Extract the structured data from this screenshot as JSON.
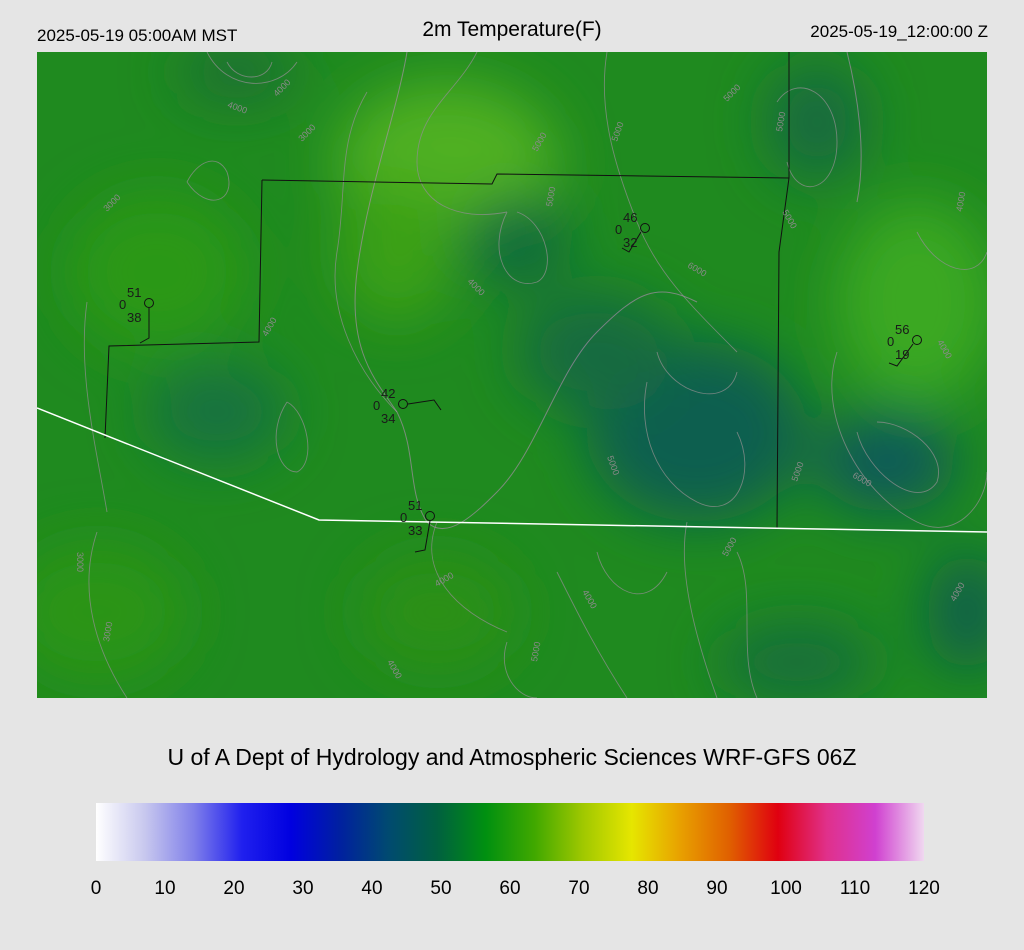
{
  "header": {
    "local_time": "2025-05-19 05:00AM MST",
    "title": "2m Temperature(F)",
    "valid_time": "2025-05-19_12:00:00 Z"
  },
  "credit": "U of A Dept of Hydrology and Atmospheric Sciences WRF-GFS 06Z",
  "colorbar": {
    "ticks": [
      "0",
      "10",
      "20",
      "30",
      "40",
      "50",
      "60",
      "70",
      "80",
      "90",
      "100",
      "110",
      "120"
    ],
    "range": [
      0,
      120
    ],
    "stops": [
      "#ffffff",
      "#c8c8ee",
      "#8080ea",
      "#2020ee",
      "#0000e0",
      "#0020a0",
      "#004a70",
      "#006040",
      "#009010",
      "#40a800",
      "#a0c800",
      "#e6e600",
      "#e8a000",
      "#e06000",
      "#e00010",
      "#e0308a",
      "#d040d0",
      "#f0d8f0"
    ]
  },
  "stations": [
    {
      "id": "st-a",
      "temp": "51",
      "wind": "0",
      "dew": "38"
    },
    {
      "id": "st-b",
      "temp": "46",
      "wind": "0",
      "dew": "32"
    },
    {
      "id": "st-c",
      "temp": "42",
      "wind": "0",
      "dew": "34"
    },
    {
      "id": "st-d",
      "temp": "51",
      "wind": "0",
      "dew": "33"
    },
    {
      "id": "st-e",
      "temp": "56",
      "wind": "0",
      "dew": "19"
    }
  ],
  "contour_labels": [
    "4000",
    "4000",
    "3000",
    "3000",
    "4000",
    "5000",
    "5000",
    "4000",
    "5000",
    "5000",
    "5000",
    "5000",
    "6000",
    "5000",
    "5000",
    "4000",
    "5000",
    "4000",
    "4000",
    "6000",
    "5000",
    "4000",
    "3000",
    "3000",
    "4000",
    "4000"
  ],
  "colors": {
    "background": "#e5e5e5",
    "map_base": "#1f8a1f",
    "state_border": "#ffffff",
    "county_border": "#111111"
  }
}
